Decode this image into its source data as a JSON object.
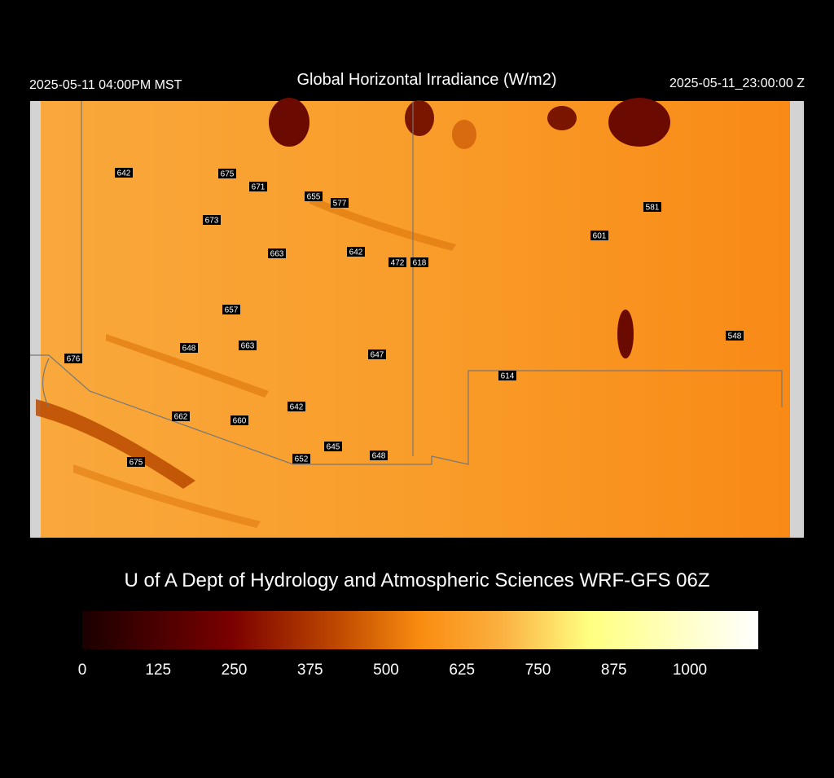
{
  "header": {
    "local_time": "2025-05-11 04:00PM MST",
    "title": "Global Horizontal Irradiance (W/m2)",
    "valid_time": "2025-05-11_23:00:00 Z"
  },
  "stations": [
    642,
    675,
    671,
    655,
    577,
    673,
    581,
    601,
    663,
    642,
    472,
    618,
    657,
    548,
    648,
    663,
    676,
    647,
    614,
    642,
    662,
    660,
    645,
    652,
    648,
    675
  ],
  "footer": {
    "credit": "U of A Dept of Hydrology and Atmospheric Sciences WRF-GFS 06Z"
  },
  "colorbar": {
    "ticks": [
      0,
      125,
      250,
      375,
      500,
      625,
      750,
      875,
      1000
    ]
  }
}
